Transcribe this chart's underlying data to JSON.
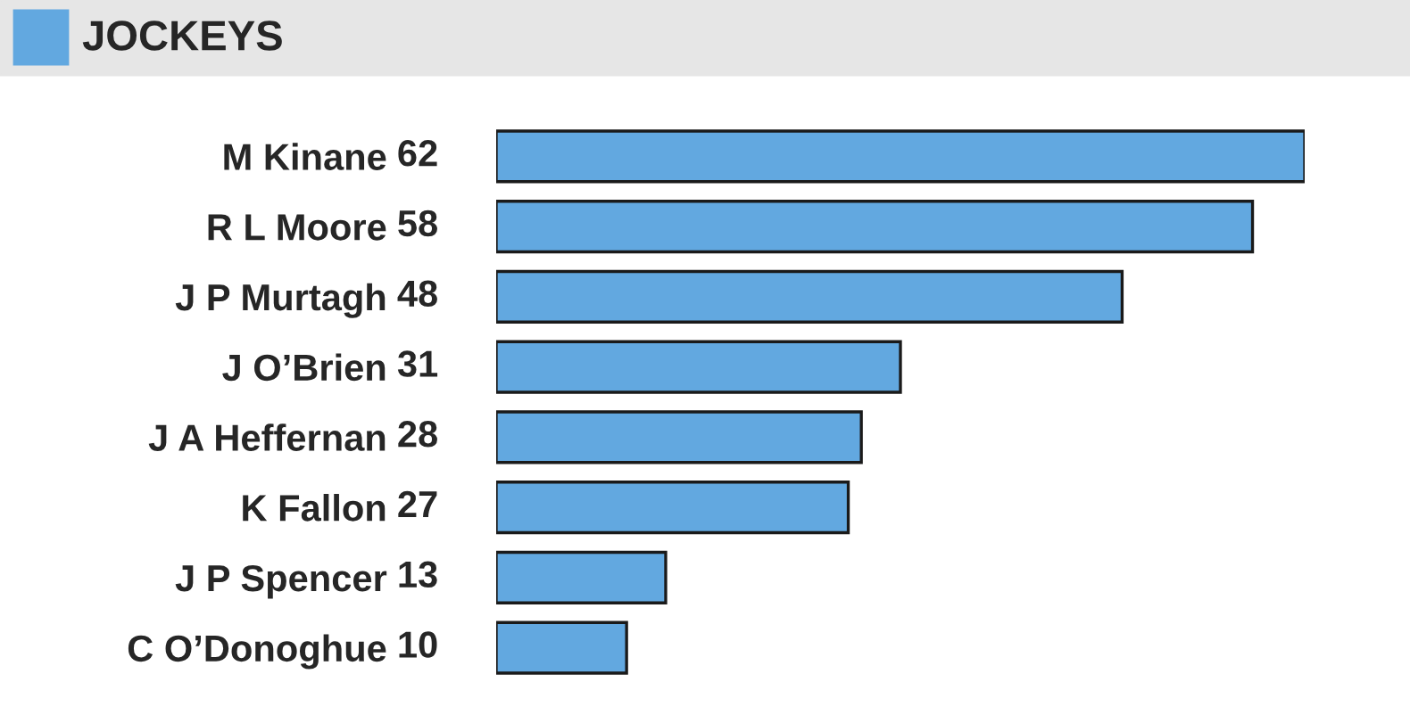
{
  "chart_data": {
    "type": "bar",
    "orientation": "horizontal",
    "title": "JOCKEYS",
    "categories": [
      "M Kinane",
      "R L Moore",
      "J P Murtagh",
      "J O’Brien",
      "J A Heffernan",
      "K Fallon",
      "J P Spencer",
      "C O’Donoghue"
    ],
    "values": [
      62,
      58,
      48,
      31,
      28,
      27,
      13,
      10
    ],
    "color": "#62a8e0",
    "data_labels": true,
    "grid": false,
    "legend": false
  }
}
